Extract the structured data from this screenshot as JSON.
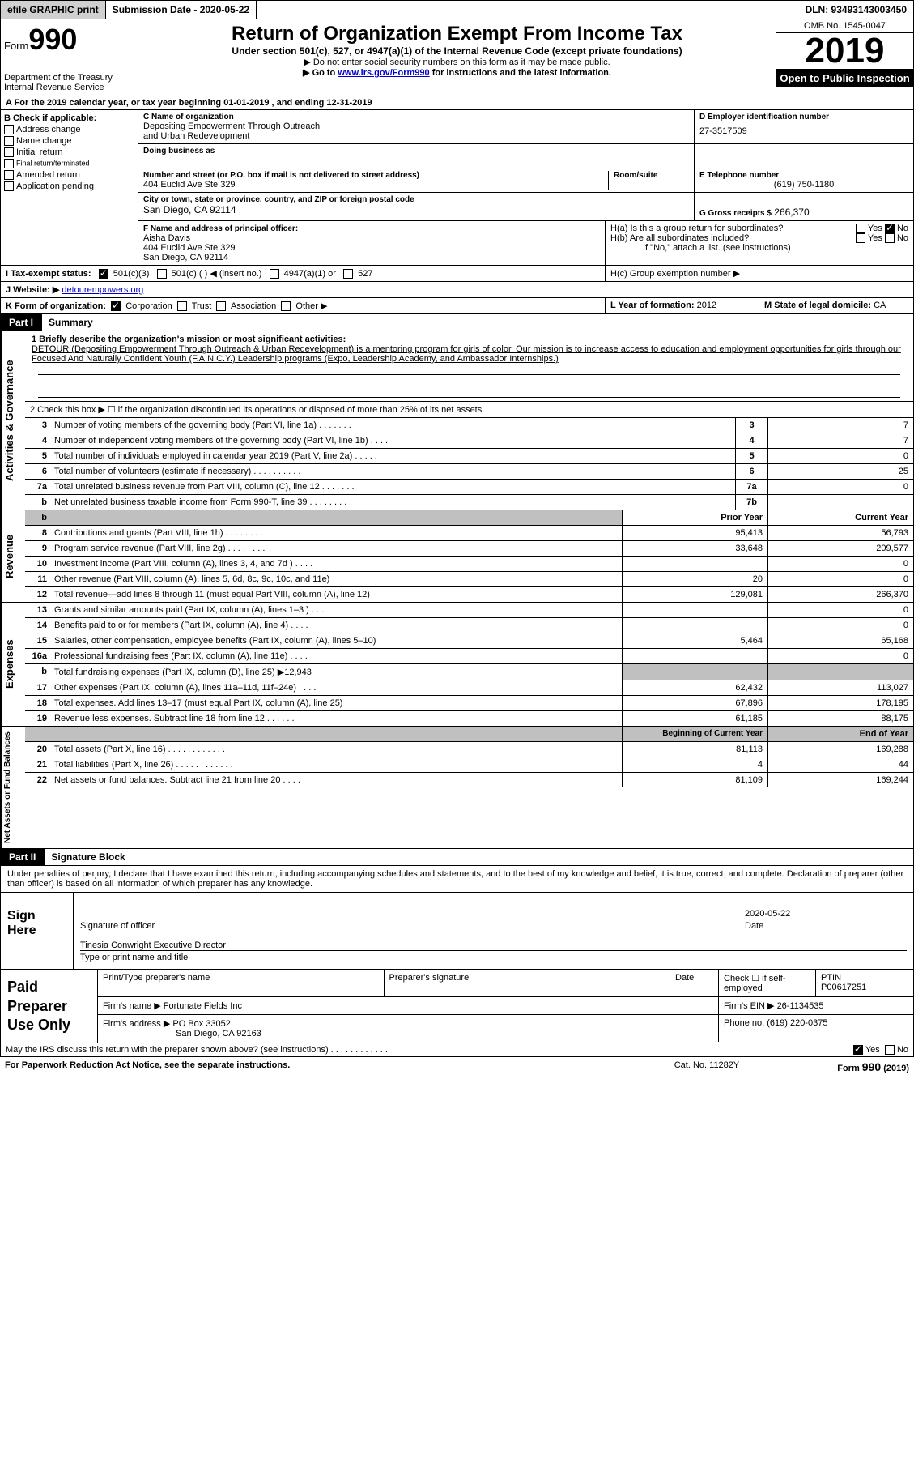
{
  "top_bar": {
    "efile": "efile GRAPHIC print",
    "submission": "Submission Date - 2020-05-22",
    "dln": "DLN: 93493143003450"
  },
  "header": {
    "form_label": "Form",
    "form_num": "990",
    "dept1": "Department of the Treasury",
    "dept2": "Internal Revenue Service",
    "title": "Return of Organization Exempt From Income Tax",
    "sub": "Under section 501(c), 527, or 4947(a)(1) of the Internal Revenue Code (except private foundations)",
    "arrow1": "▶ Do not enter social security numbers on this form as it may be made public.",
    "arrow2_pre": "▶ Go to ",
    "arrow2_link": "www.irs.gov/Form990",
    "arrow2_post": " for instructions and the latest information.",
    "omb": "OMB No. 1545-0047",
    "year": "2019",
    "inspection": "Open to Public Inspection"
  },
  "row_a": "A   For the 2019 calendar year, or tax year beginning 01-01-2019    , and ending 12-31-2019",
  "section_b": {
    "label": "B Check if applicable:",
    "opts": [
      "Address change",
      "Name change",
      "Initial return",
      "Final return/terminated",
      "Amended return",
      "Application pending"
    ]
  },
  "section_c": {
    "label": "C Name of organization",
    "name1": "Depositing Empowerment Through Outreach",
    "name2": "and Urban Redevelopment",
    "dba_label": "Doing business as",
    "addr_label": "Number and street (or P.O. box if mail is not delivered to street address)",
    "addr": "404 Euclid Ave Ste 329",
    "room_label": "Room/suite",
    "city_label": "City or town, state or province, country, and ZIP or foreign postal code",
    "city": "San Diego, CA  92114"
  },
  "section_d": {
    "label": "D Employer identification number",
    "ein": "27-3517509"
  },
  "section_e": {
    "label": "E Telephone number",
    "phone": "(619) 750-1180"
  },
  "section_g": {
    "label": "G Gross receipts $",
    "val": "266,370"
  },
  "section_f": {
    "label": "F Name and address of principal officer:",
    "name": "Aisha Davis",
    "addr1": "404 Euclid Ave Ste 329",
    "addr2": "San Diego, CA  92114"
  },
  "section_h": {
    "ha": "H(a)  Is this a group return for subordinates?",
    "hb": "H(b)  Are all subordinates included?",
    "hb_note": "If \"No,\" attach a list. (see instructions)",
    "hc": "H(c)  Group exemption number ▶",
    "yes": "Yes",
    "no": "No"
  },
  "row_i": {
    "label": "I    Tax-exempt status:",
    "o1": "501(c)(3)",
    "o2": "501(c) (  ) ◀ (insert no.)",
    "o3": "4947(a)(1) or",
    "o4": "527"
  },
  "row_j": {
    "label": "J    Website: ▶",
    "val": "detourempowers.org"
  },
  "row_k": {
    "label": "K Form of organization:",
    "o1": "Corporation",
    "o2": "Trust",
    "o3": "Association",
    "o4": "Other ▶"
  },
  "row_l": {
    "label": "L Year of formation:",
    "val": "2012"
  },
  "row_m": {
    "label": "M State of legal domicile:",
    "val": "CA"
  },
  "part1": {
    "label": "Part I",
    "title": "Summary",
    "line1_label": "1    Briefly describe the organization's mission or most significant activities:",
    "mission": "DETOUR (Depositing Empowerment Through Outreach & Urban Redevelopment) is a mentoring program for girls of color. Our mission is to increase access to education and employment opportunities for girls through our Focused And Naturally Confident Youth (F.A.N.C.Y.) Leadership programs (Expo, Leadership Academy, and Ambassador Internships.)",
    "line2": "2    Check this box ▶ ☐  if the organization discontinued its operations or disposed of more than 25% of its net assets.",
    "vlabel_gov": "Activities & Governance",
    "vlabel_rev": "Revenue",
    "vlabel_exp": "Expenses",
    "vlabel_net": "Net Assets or Fund Balances",
    "gov_lines": [
      {
        "n": "3",
        "t": "Number of voting members of the governing body (Part VI, line 1a)   .    .    .    .    .    .    .",
        "b": "3",
        "v": "7"
      },
      {
        "n": "4",
        "t": "Number of independent voting members of the governing body (Part VI, line 1b)   .    .    .    .",
        "b": "4",
        "v": "7"
      },
      {
        "n": "5",
        "t": "Total number of individuals employed in calendar year 2019 (Part V, line 2a)   .    .    .    .    .",
        "b": "5",
        "v": "0"
      },
      {
        "n": "6",
        "t": "Total number of volunteers (estimate if necessary)   .    .    .    .    .    .    .    .    .    .",
        "b": "6",
        "v": "25"
      },
      {
        "n": "7a",
        "t": "Total unrelated business revenue from Part VIII, column (C), line 12   .    .    .    .    .    .    .",
        "b": "7a",
        "v": "0"
      },
      {
        "n": "b",
        "t": "Net unrelated business taxable income from Form 990-T, line 39   .    .    .    .    .    .    .    .",
        "b": "7b",
        "v": ""
      }
    ],
    "col_prior": "Prior Year",
    "col_current": "Current Year",
    "col_begin": "Beginning of Current Year",
    "col_end": "End of Year",
    "rev_lines": [
      {
        "n": "8",
        "t": "Contributions and grants (Part VIII, line 1h)   .    .    .    .    .    .    .    .",
        "p": "95,413",
        "c": "56,793"
      },
      {
        "n": "9",
        "t": "Program service revenue (Part VIII, line 2g)   .    .    .    .    .    .    .    .",
        "p": "33,648",
        "c": "209,577"
      },
      {
        "n": "10",
        "t": "Investment income (Part VIII, column (A), lines 3, 4, and 7d )   .    .    .    .",
        "p": "",
        "c": "0"
      },
      {
        "n": "11",
        "t": "Other revenue (Part VIII, column (A), lines 5, 6d, 8c, 9c, 10c, and 11e)",
        "p": "20",
        "c": "0"
      },
      {
        "n": "12",
        "t": "Total revenue—add lines 8 through 11 (must equal Part VIII, column (A), line 12)",
        "p": "129,081",
        "c": "266,370"
      }
    ],
    "exp_lines": [
      {
        "n": "13",
        "t": "Grants and similar amounts paid (Part IX, column (A), lines 1–3 )  .    .    .",
        "p": "",
        "c": "0"
      },
      {
        "n": "14",
        "t": "Benefits paid to or for members (Part IX, column (A), line 4)   .    .    .    .",
        "p": "",
        "c": "0"
      },
      {
        "n": "15",
        "t": "Salaries, other compensation, employee benefits (Part IX, column (A), lines 5–10)",
        "p": "5,464",
        "c": "65,168"
      },
      {
        "n": "16a",
        "t": "Professional fundraising fees (Part IX, column (A), line 11e)   .    .    .    .",
        "p": "",
        "c": "0"
      },
      {
        "n": "b",
        "t": "Total fundraising expenses (Part IX, column (D), line 25) ▶12,943",
        "p": "GRAY",
        "c": "GRAY"
      },
      {
        "n": "17",
        "t": "Other expenses (Part IX, column (A), lines 11a–11d, 11f–24e)   .    .    .    .",
        "p": "62,432",
        "c": "113,027"
      },
      {
        "n": "18",
        "t": "Total expenses. Add lines 13–17 (must equal Part IX, column (A), line 25)",
        "p": "67,896",
        "c": "178,195"
      },
      {
        "n": "19",
        "t": "Revenue less expenses. Subtract line 18 from line 12   .    .    .    .    .    .",
        "p": "61,185",
        "c": "88,175"
      }
    ],
    "net_lines": [
      {
        "n": "20",
        "t": "Total assets (Part X, line 16)   .    .    .    .    .    .    .    .    .    .    .    .",
        "p": "81,113",
        "c": "169,288"
      },
      {
        "n": "21",
        "t": "Total liabilities (Part X, line 26)  .    .    .    .    .    .    .    .    .    .    .    .",
        "p": "4",
        "c": "44"
      },
      {
        "n": "22",
        "t": "Net assets or fund balances. Subtract line 21 from line 20   .    .    .    .",
        "p": "81,109",
        "c": "169,244"
      }
    ]
  },
  "part2": {
    "label": "Part II",
    "title": "Signature Block",
    "perjury": "Under penalties of perjury, I declare that I have examined this return, including accompanying schedules and statements, and to the best of my knowledge and belief, it is true, correct, and complete. Declaration of preparer (other than officer) is based on all information of which preparer has any knowledge.",
    "sign_here": "Sign Here",
    "sig_officer": "Signature of officer",
    "sig_date": "2020-05-22",
    "date_label": "Date",
    "officer_name": "Tinesia Conwright Executive Director",
    "name_label": "Type or print name and title",
    "paid_prep": "Paid Preparer Use Only",
    "prep_name_label": "Print/Type preparer's name",
    "prep_sig_label": "Preparer's signature",
    "prep_date_label": "Date",
    "prep_check": "Check ☐ if self-employed",
    "ptin_label": "PTIN",
    "ptin": "P00617251",
    "firm_name_label": "Firm's name    ▶",
    "firm_name": "Fortunate Fields Inc",
    "firm_ein_label": "Firm's EIN ▶",
    "firm_ein": "26-1134535",
    "firm_addr_label": "Firm's address ▶",
    "firm_addr1": "PO Box 33052",
    "firm_addr2": "San Diego, CA  92163",
    "firm_phone_label": "Phone no.",
    "firm_phone": "(619) 220-0375"
  },
  "footer": {
    "discuss": "May the IRS discuss this return with the preparer shown above? (see instructions)   .    .    .    .    .    .    .    .    .    .    .    .",
    "yes": "Yes",
    "no": "No",
    "paperwork": "For Paperwork Reduction Act Notice, see the separate instructions.",
    "cat": "Cat. No. 11282Y",
    "form": "Form 990 (2019)"
  }
}
